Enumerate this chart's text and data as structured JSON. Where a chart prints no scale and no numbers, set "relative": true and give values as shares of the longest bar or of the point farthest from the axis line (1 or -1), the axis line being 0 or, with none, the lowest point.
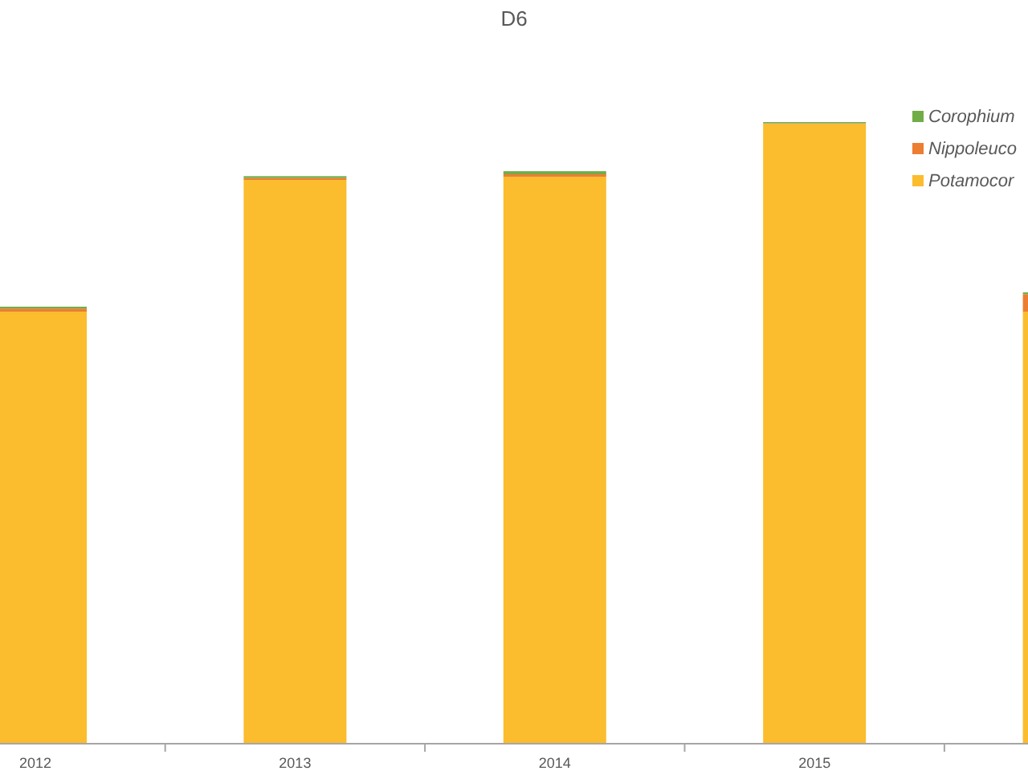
{
  "chart_data": {
    "type": "bar",
    "title": "D6",
    "categories": [
      "2012",
      "2013",
      "2014",
      "2015",
      null
    ],
    "stacked": true,
    "relative": true,
    "legend": "right",
    "series": [
      {
        "name": "Potamocor",
        "color": "#fbbc2d",
        "values": [
          0.695,
          0.907,
          0.912,
          0.997,
          0.695
        ]
      },
      {
        "name": "Nippoleuco",
        "color": "#ed7d31",
        "values": [
          0.005,
          0.003,
          0.004,
          0.001,
          0.028
        ]
      },
      {
        "name": "Corophium",
        "color": "#70ad47",
        "values": [
          0.003,
          0.003,
          0.005,
          0.002,
          0.003
        ]
      }
    ]
  }
}
